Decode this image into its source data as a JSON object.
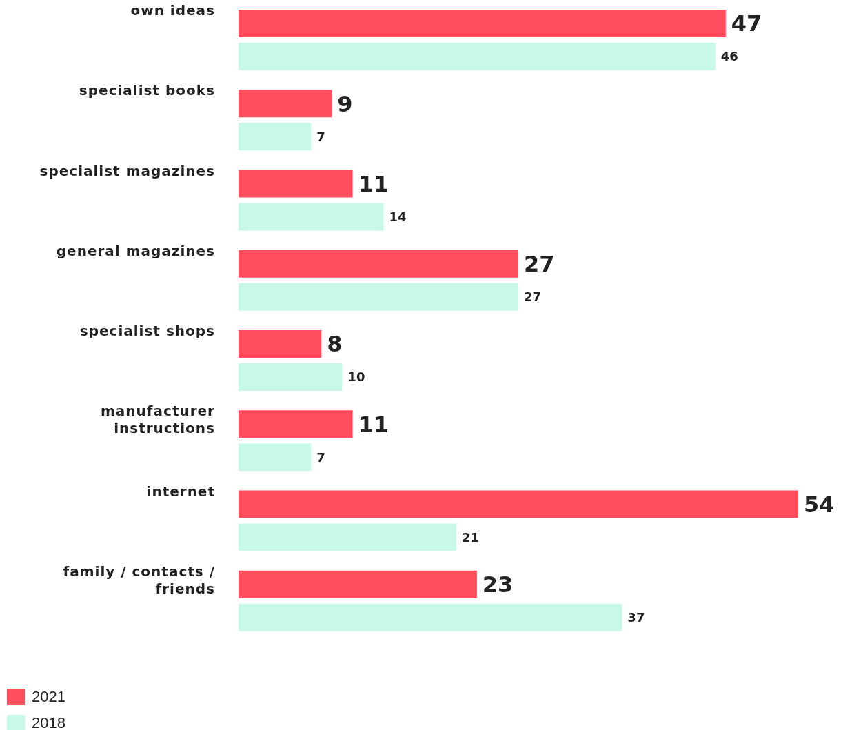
{
  "chart_data": {
    "type": "bar",
    "orientation": "horizontal",
    "categories": [
      "own ideas",
      "specialist books",
      "specialist magazines",
      "general magazines",
      "specialist shops",
      "manufacturer instructions",
      "internet",
      "family / contacts / friends"
    ],
    "series": [
      {
        "name": "2021",
        "color": "#ff4d5e",
        "values": [
          47,
          9,
          11,
          27,
          8,
          11,
          54,
          23
        ]
      },
      {
        "name": "2018",
        "color": "#c8f9e6",
        "values": [
          46,
          7,
          14,
          27,
          10,
          7,
          21,
          37
        ]
      }
    ],
    "data_labels": true,
    "legend": "bottom left"
  }
}
